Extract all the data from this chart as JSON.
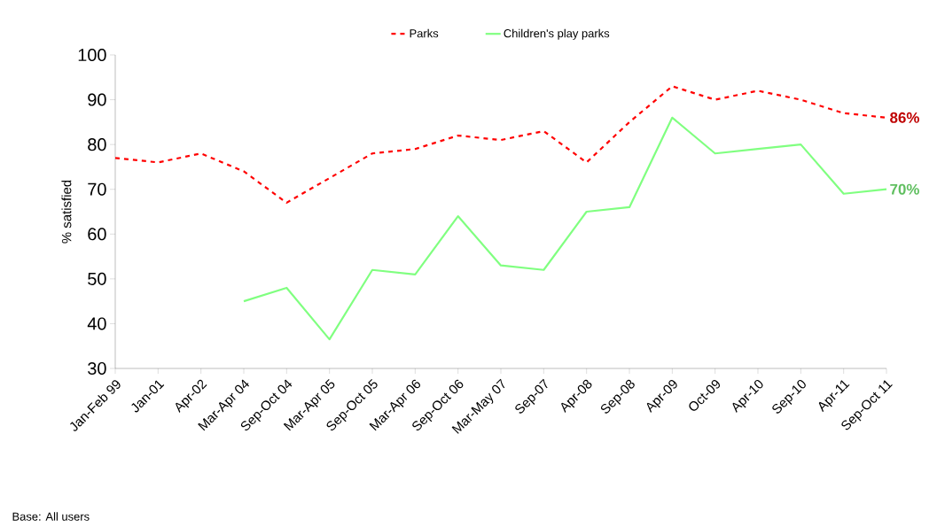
{
  "chart_data": {
    "type": "line",
    "ylabel": "% satisfied",
    "categories": [
      "Jan-Feb 99",
      "Jan-01",
      "Apr-02",
      "Mar-Apr 04",
      "Sep-Oct 04",
      "Mar-Apr 05",
      "Sep-Oct 05",
      "Mar-Apr 06",
      "Sep-Oct 06",
      "Mar-May 07",
      "Sep-07",
      "Apr-08",
      "Sep-08",
      "Apr-09",
      "Oct-09",
      "Apr-10",
      "Sep-10",
      "Apr-11",
      "Sep-Oct 11"
    ],
    "series": [
      {
        "name": "Parks",
        "color": "#ff0000",
        "line_style": "dashed",
        "values": [
          77,
          76,
          78,
          74,
          67,
          72.5,
          78,
          79,
          82,
          81,
          83,
          76,
          85,
          93,
          90,
          92,
          90,
          87,
          86
        ],
        "value_labels": [
          null,
          null,
          null,
          null,
          null,
          null,
          null,
          null,
          null,
          null,
          null,
          null,
          null,
          null,
          null,
          null,
          null,
          null,
          "86%"
        ]
      },
      {
        "name": "Children's play parks",
        "color": "#80ff80",
        "line_style": "solid",
        "values": [
          null,
          null,
          null,
          45,
          48,
          36.5,
          52,
          51,
          64,
          53,
          52,
          65,
          66,
          86,
          78,
          79,
          80,
          69,
          70
        ],
        "value_labels": [
          null,
          null,
          null,
          null,
          null,
          null,
          null,
          null,
          null,
          null,
          null,
          null,
          null,
          null,
          null,
          null,
          null,
          null,
          "70%"
        ]
      }
    ],
    "ylim": [
      30,
      100
    ],
    "yticks": [
      30,
      40,
      50,
      60,
      70,
      80,
      90,
      100
    ],
    "grid": false,
    "legend": "top",
    "marker": "none",
    "annotations": [
      "Base: All users"
    ]
  }
}
